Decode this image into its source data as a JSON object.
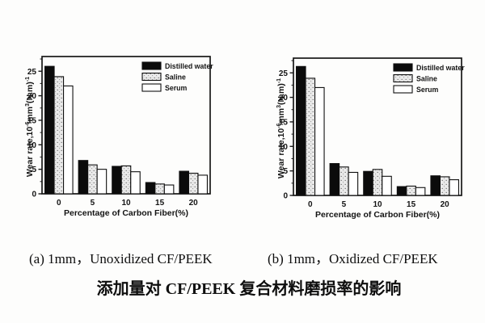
{
  "figure": {
    "caption_a": "(a) 1mm，Unoxidized CF/PEEK",
    "caption_b": "(b) 1mm，Oxidized CF/PEEK",
    "title_cn": "添加量对 CF/PEEK 复合材料磨损率的影响"
  },
  "colors": {
    "bar_black": "#0b0b0b",
    "bar_white": "#ffffff",
    "stipple_base": "#ebebeb",
    "stipple_dot": "#6a6a6a",
    "frame": "#171717",
    "text": "#141414"
  },
  "chart_data": [
    {
      "type": "bar",
      "panel_label": "a",
      "panel_caption": "(a) 1mm，Unoxidized CF/PEEK",
      "xlabel": "Percentage of Carbon Fiber(%)",
      "ylabel": "Wear rate,10⁻⁶mm³(N.m)⁻¹",
      "ylabel_parts": [
        {
          "t": "Wear rate,10"
        },
        {
          "sup": "-6"
        },
        {
          "t": "mm"
        },
        {
          "sup": "3"
        },
        {
          "t": "(N.m)"
        },
        {
          "sup": "-1"
        }
      ],
      "categories": [
        "0",
        "5",
        "10",
        "15",
        "20"
      ],
      "series": [
        {
          "name": "Distilled water",
          "style": "solid-black",
          "values": [
            26.0,
            6.8,
            5.6,
            2.3,
            4.6
          ]
        },
        {
          "name": "Saline",
          "style": "stipple",
          "values": [
            23.9,
            5.9,
            5.7,
            2.0,
            4.2
          ]
        },
        {
          "name": "Serum",
          "style": "white",
          "values": [
            22.0,
            5.0,
            4.5,
            1.8,
            3.8
          ]
        }
      ],
      "yticks": [
        0,
        5,
        10,
        15,
        20,
        25
      ],
      "minor_tick_step": 2.5,
      "ylim": [
        0,
        28
      ],
      "grid": false,
      "legend_position": "top-right"
    },
    {
      "type": "bar",
      "panel_label": "b",
      "panel_caption": "(b) 1mm，Oxidized CF/PEEK",
      "xlabel": "Percentage of Carbon Fiber(%)",
      "ylabel": "Wear rate,10⁻⁶mm³(N.m)⁻¹",
      "ylabel_parts": [
        {
          "t": "Wear rate,10"
        },
        {
          "sup": "-6"
        },
        {
          "t": "mm"
        },
        {
          "sup": "3"
        },
        {
          "t": "(N.m)"
        },
        {
          "sup": "-1"
        }
      ],
      "categories": [
        "0",
        "5",
        "10",
        "15",
        "20"
      ],
      "series": [
        {
          "name": "Distilled water",
          "style": "solid-black",
          "values": [
            26.3,
            6.5,
            4.9,
            1.8,
            4.0
          ]
        },
        {
          "name": "Saline",
          "style": "stipple",
          "values": [
            23.9,
            5.8,
            5.3,
            1.9,
            3.8
          ]
        },
        {
          "name": "Serum",
          "style": "white",
          "values": [
            22.0,
            4.7,
            3.9,
            1.6,
            3.2
          ]
        }
      ],
      "yticks": [
        0,
        5,
        10,
        15,
        20,
        25
      ],
      "minor_tick_step": 2.5,
      "ylim": [
        0,
        28
      ],
      "grid": false,
      "legend_position": "top-right"
    }
  ]
}
